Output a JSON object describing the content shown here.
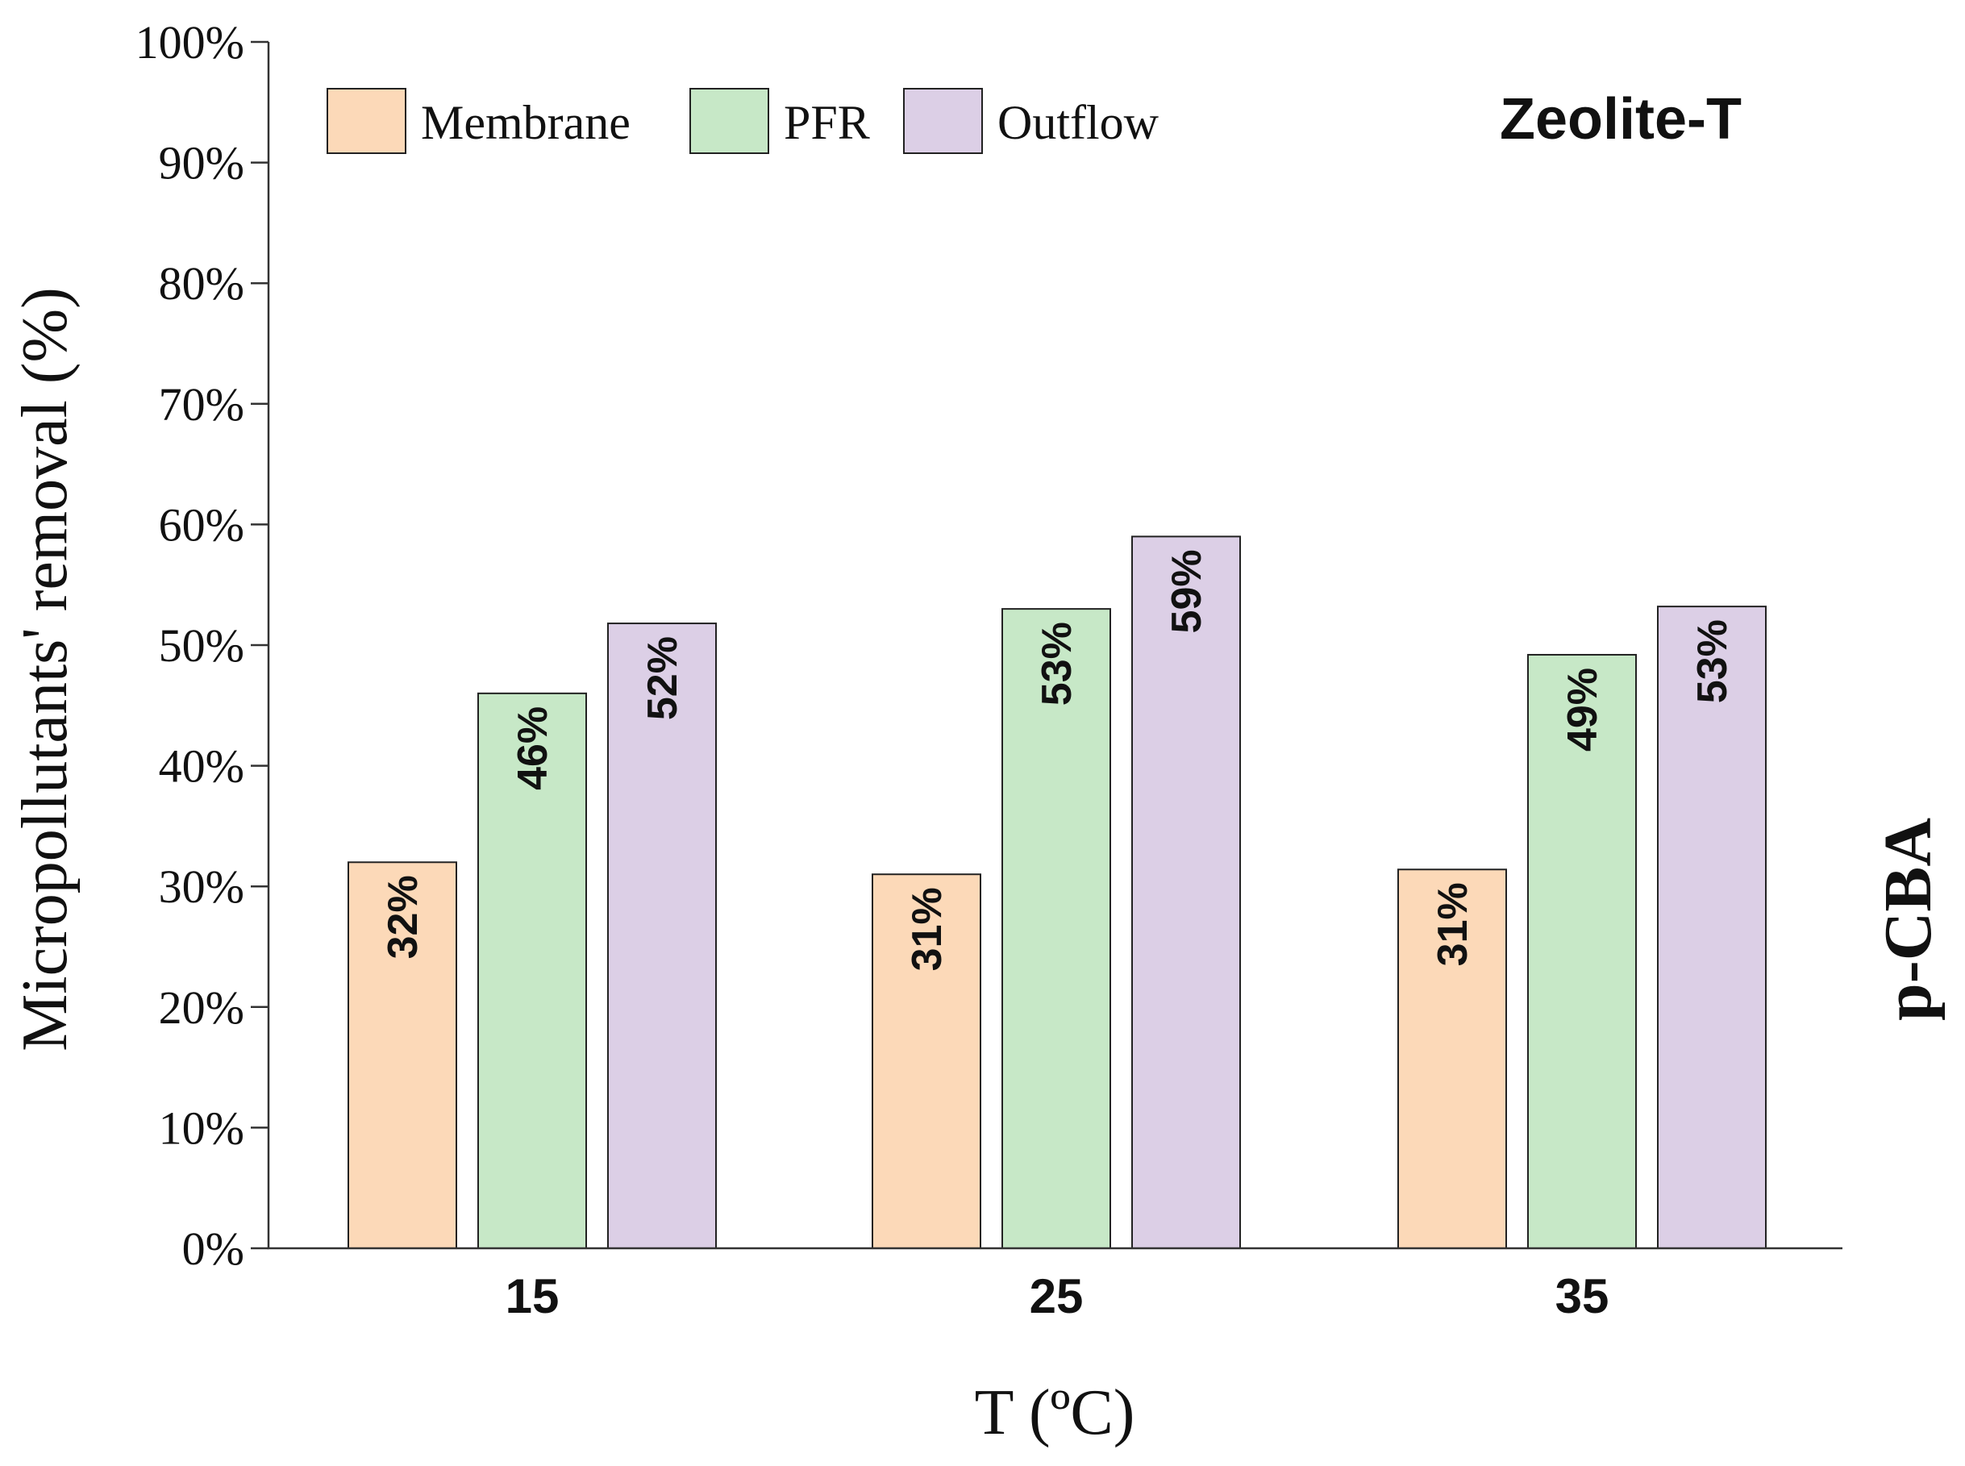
{
  "chart_data": {
    "type": "bar",
    "categories": [
      "15",
      "25",
      "35"
    ],
    "series": [
      {
        "name": "Membrane",
        "values": [
          32,
          31,
          31.4
        ],
        "labels": [
          "32%",
          "31%",
          "31%"
        ],
        "color": "#fcd9b8"
      },
      {
        "name": "PFR",
        "values": [
          46,
          53,
          49.2
        ],
        "labels": [
          "46%",
          "53%",
          "49%"
        ],
        "color": "#c7e8c7"
      },
      {
        "name": "Outflow",
        "values": [
          51.8,
          59,
          53.2
        ],
        "labels": [
          "52%",
          "59%",
          "53%"
        ],
        "color": "#dccfe6"
      }
    ],
    "xlabel": "T (ºC)",
    "ylabel": "Micropollutants' removal (%)",
    "ylim": [
      0,
      100
    ],
    "yticks": [
      0,
      10,
      20,
      30,
      40,
      50,
      60,
      70,
      80,
      90,
      100
    ],
    "ytick_labels": [
      "0%",
      "10%",
      "20%",
      "30%",
      "40%",
      "50%",
      "60%",
      "70%",
      "80%",
      "90%",
      "100%"
    ],
    "annotation": "Zeolite-T",
    "side_label": "p-CBA",
    "legend_position": "top-left",
    "grid": false
  }
}
